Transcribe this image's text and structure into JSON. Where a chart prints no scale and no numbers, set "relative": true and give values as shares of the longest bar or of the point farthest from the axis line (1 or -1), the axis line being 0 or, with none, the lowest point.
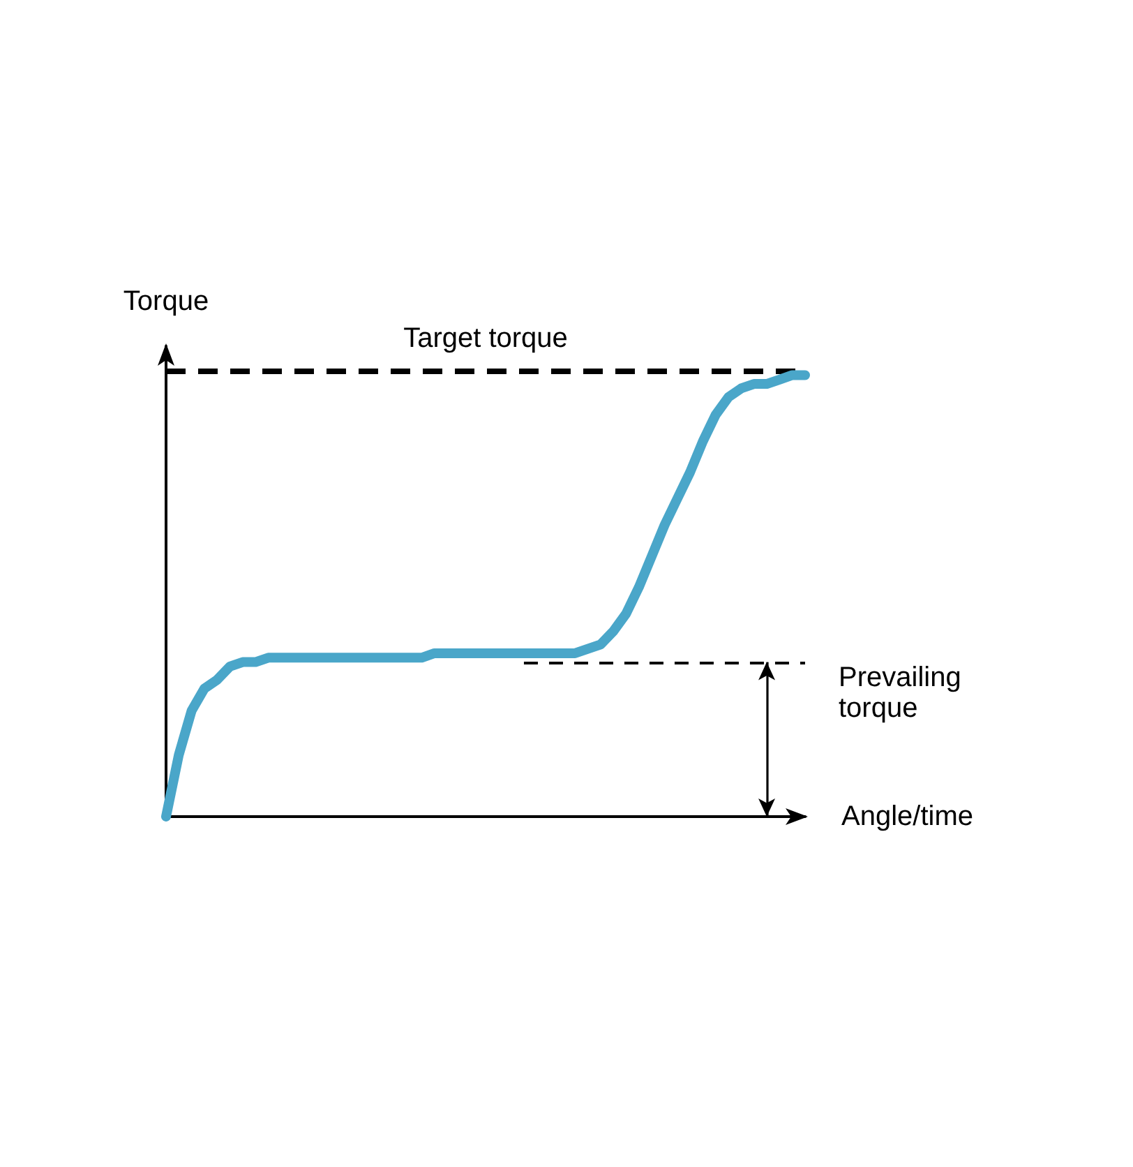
{
  "chart_data": {
    "type": "line",
    "xlabel": "Angle/time",
    "ylabel": "Torque",
    "relative": true,
    "marker": "none",
    "line_style": "solid",
    "categories": [
      null,
      null,
      null,
      null,
      null,
      null,
      null,
      null,
      null,
      null,
      null,
      null,
      null,
      null,
      null,
      null,
      null,
      null,
      null,
      null,
      null,
      null,
      null,
      null,
      null,
      null,
      null,
      null,
      null,
      null,
      null,
      null,
      null,
      null,
      null,
      null,
      null,
      null,
      null,
      null,
      null,
      null,
      null,
      null,
      null,
      null,
      null,
      null,
      null,
      null,
      null
    ],
    "series": [
      {
        "color": "#4aa6c9",
        "values": [
          0,
          0.14,
          0.24,
          0.29,
          0.31,
          0.34,
          0.35,
          0.35,
          0.36,
          0.36,
          0.36,
          0.36,
          0.36,
          0.36,
          0.36,
          0.36,
          0.36,
          0.36,
          0.36,
          0.36,
          0.36,
          0.37,
          0.37,
          0.37,
          0.37,
          0.37,
          0.37,
          0.37,
          0.37,
          0.37,
          0.37,
          0.37,
          0.37,
          0.38,
          0.39,
          0.42,
          0.46,
          0.52,
          0.59,
          0.66,
          0.72,
          0.78,
          0.85,
          0.91,
          0.95,
          0.97,
          0.98,
          0.98,
          0.99,
          1.0,
          1.0
        ]
      }
    ],
    "ref_lines": [
      {
        "axis": "y",
        "value": 1.01,
        "label": "Target torque",
        "line_style": "dashed",
        "color": "#000000"
      },
      {
        "axis": "y",
        "value": 0.35,
        "label": "Prevailing torque",
        "line_style": "dashed",
        "color": "#000000"
      }
    ]
  }
}
